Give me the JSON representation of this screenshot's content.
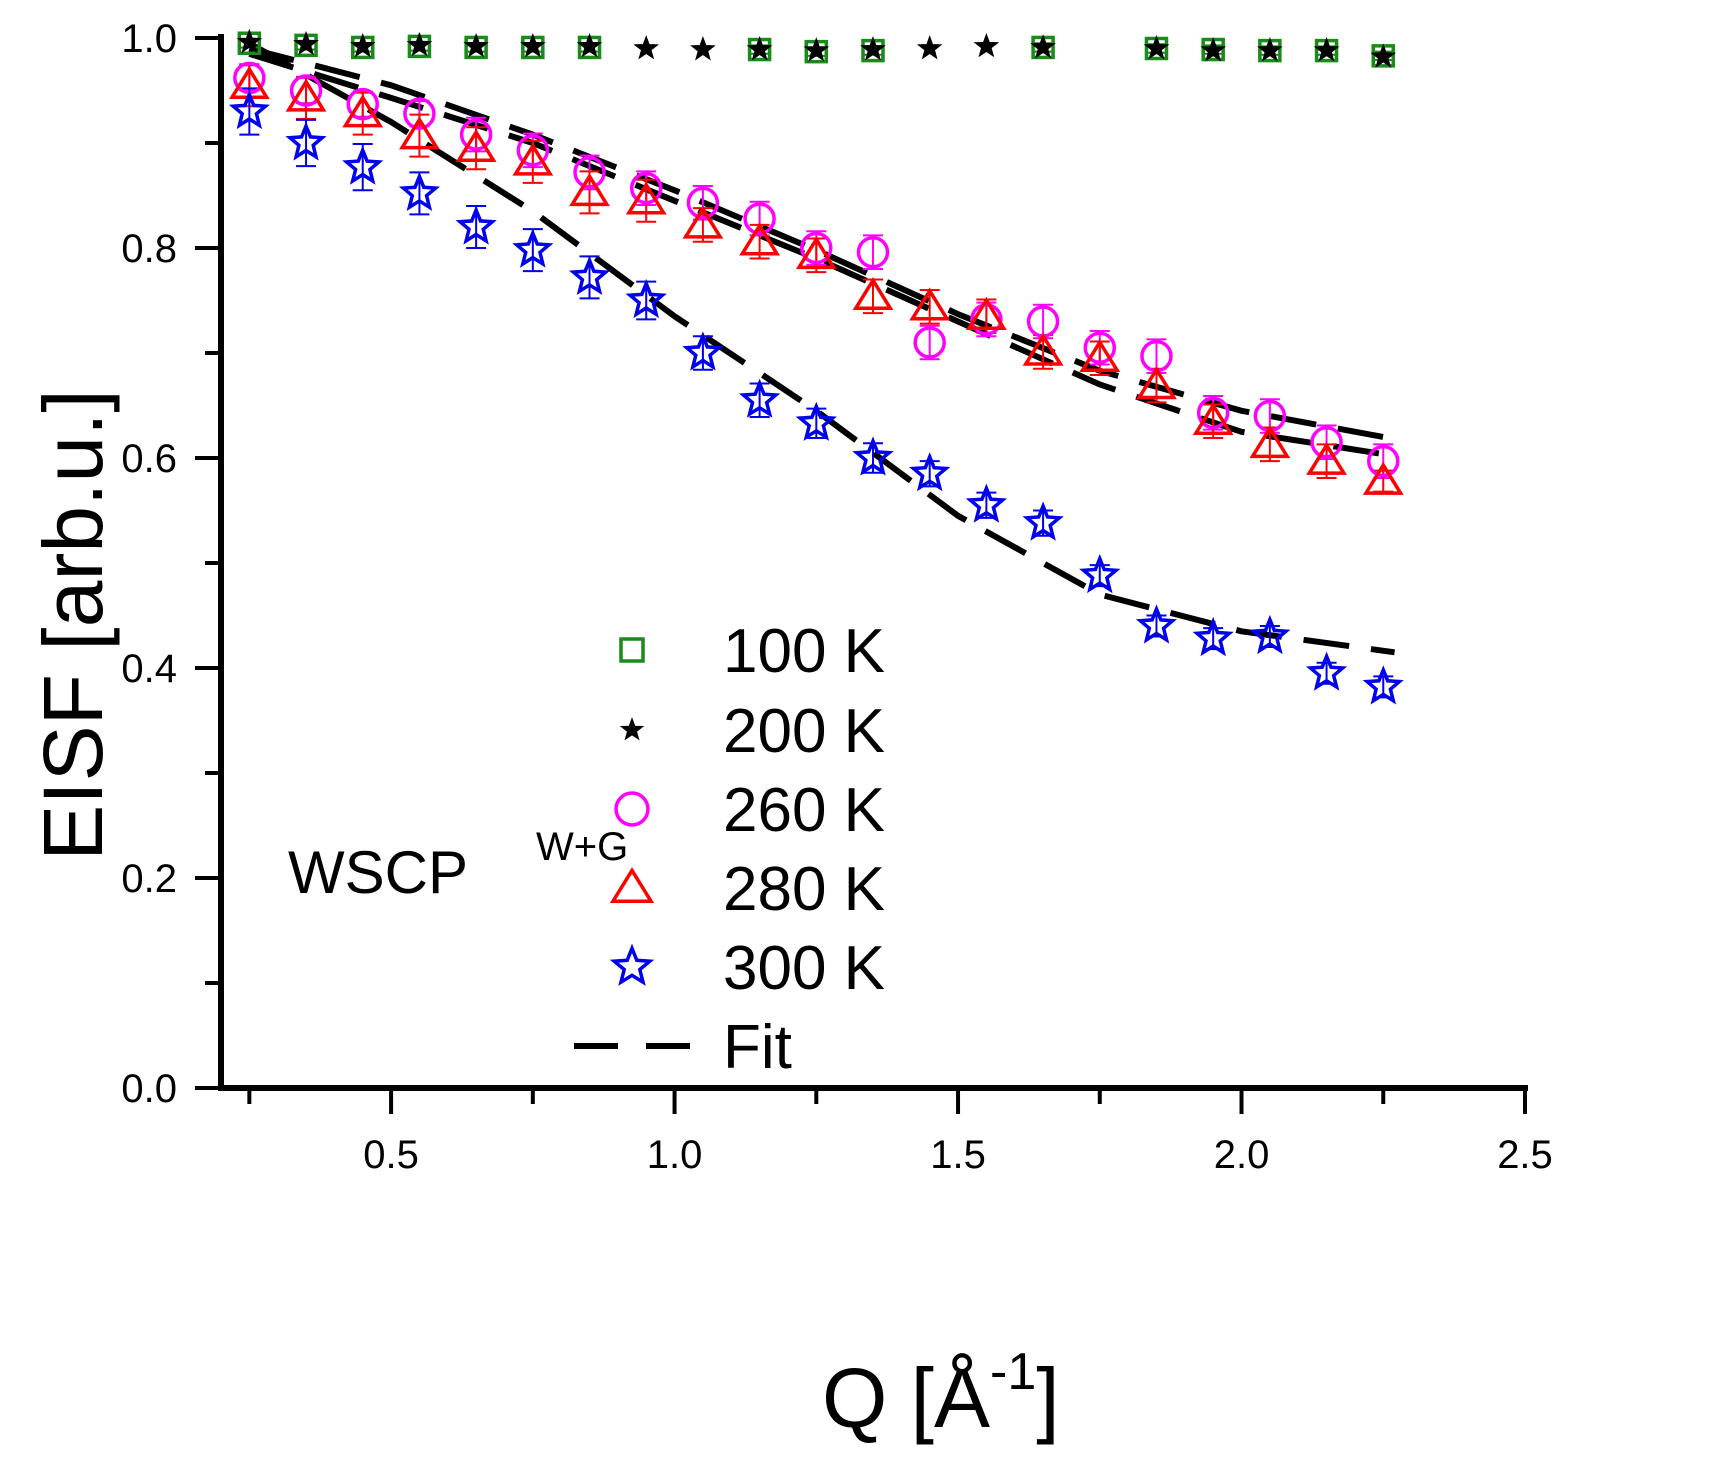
{
  "chart_data": {
    "type": "scatter",
    "title": "",
    "xlabel": "Q [Å",
    "xlabel_sup": "-1",
    "xlabel_close": "]",
    "ylabel": "EISF [arb.u.]",
    "xlim": [
      0.2,
      2.5
    ],
    "ylim": [
      0.0,
      1.0
    ],
    "x_ticks": [
      0.5,
      1.0,
      1.5,
      2.0,
      2.5
    ],
    "x_tick_labels": [
      "0.5",
      "1.0",
      "1.5",
      "2.0",
      "2.5"
    ],
    "x_minor_ticks": [
      0.25,
      0.75,
      1.25,
      1.75,
      2.25
    ],
    "y_ticks": [
      0.0,
      0.2,
      0.4,
      0.6,
      0.8,
      1.0
    ],
    "y_tick_labels": [
      "0.0",
      "0.2",
      "0.4",
      "0.6",
      "0.8",
      "1.0"
    ],
    "y_minor_ticks": [
      0.1,
      0.3,
      0.5,
      0.7,
      0.9
    ],
    "grid": false,
    "legend_position": "lower-middle",
    "annotation": {
      "text": "WSCP",
      "sup": "W+G"
    },
    "series": [
      {
        "name": "100 K",
        "marker": "square",
        "color": "#1a8a1a",
        "x": [
          0.25,
          0.35,
          0.45,
          0.55,
          0.65,
          0.75,
          0.85,
          1.15,
          1.25,
          1.35,
          1.65,
          1.85,
          1.95,
          2.05,
          2.15,
          2.25
        ],
        "y": [
          0.995,
          0.993,
          0.991,
          0.992,
          0.991,
          0.991,
          0.991,
          0.989,
          0.987,
          0.988,
          0.991,
          0.99,
          0.989,
          0.988,
          0.988,
          0.983
        ],
        "err": [
          0.004,
          0.004,
          0.004,
          0.004,
          0.004,
          0.004,
          0.004,
          0.004,
          0.004,
          0.004,
          0.004,
          0.004,
          0.004,
          0.004,
          0.004,
          0.004
        ]
      },
      {
        "name": "200 K",
        "marker": "star-filled",
        "color": "#000000",
        "x": [
          0.25,
          0.35,
          0.45,
          0.55,
          0.65,
          0.75,
          0.85,
          0.95,
          1.05,
          1.15,
          1.25,
          1.35,
          1.45,
          1.55,
          1.65,
          1.85,
          1.95,
          2.05,
          2.15,
          2.25
        ],
        "y": [
          0.996,
          0.994,
          0.992,
          0.993,
          0.992,
          0.992,
          0.992,
          0.99,
          0.989,
          0.989,
          0.988,
          0.989,
          0.99,
          0.992,
          0.991,
          0.99,
          0.988,
          0.988,
          0.988,
          0.982
        ]
      },
      {
        "name": "260 K",
        "marker": "circle",
        "color": "#ff00ff",
        "x": [
          0.25,
          0.35,
          0.45,
          0.55,
          0.65,
          0.75,
          0.85,
          0.95,
          1.05,
          1.15,
          1.25,
          1.35,
          1.45,
          1.55,
          1.65,
          1.75,
          1.85,
          1.95,
          2.05,
          2.15,
          2.25
        ],
        "y": [
          0.962,
          0.95,
          0.937,
          0.928,
          0.908,
          0.893,
          0.872,
          0.857,
          0.843,
          0.828,
          0.8,
          0.796,
          0.71,
          0.732,
          0.73,
          0.705,
          0.697,
          0.643,
          0.64,
          0.615,
          0.597
        ],
        "err": [
          0.012,
          0.012,
          0.012,
          0.012,
          0.016,
          0.016,
          0.016,
          0.016,
          0.016,
          0.016,
          0.016,
          0.016,
          0.016,
          0.016,
          0.016,
          0.016,
          0.016,
          0.016,
          0.016,
          0.016,
          0.016
        ]
      },
      {
        "name": "280 K",
        "marker": "triangle",
        "color": "#ff0000",
        "x": [
          0.25,
          0.35,
          0.45,
          0.55,
          0.65,
          0.75,
          0.85,
          0.95,
          1.05,
          1.15,
          1.25,
          1.35,
          1.45,
          1.55,
          1.65,
          1.75,
          1.85,
          1.95,
          2.05,
          2.15,
          2.25
        ],
        "y": [
          0.955,
          0.943,
          0.928,
          0.907,
          0.895,
          0.882,
          0.853,
          0.845,
          0.822,
          0.806,
          0.793,
          0.754,
          0.744,
          0.735,
          0.701,
          0.695,
          0.669,
          0.635,
          0.613,
          0.597,
          0.578
        ],
        "err": [
          0.02,
          0.02,
          0.02,
          0.02,
          0.02,
          0.02,
          0.02,
          0.02,
          0.016,
          0.016,
          0.016,
          0.016,
          0.016,
          0.016,
          0.016,
          0.016,
          0.016,
          0.016,
          0.016,
          0.016,
          0.01
        ]
      },
      {
        "name": "300 K",
        "marker": "star-open",
        "color": "#0000ee",
        "x": [
          0.25,
          0.35,
          0.45,
          0.55,
          0.65,
          0.75,
          0.85,
          0.95,
          1.05,
          1.15,
          1.25,
          1.35,
          1.45,
          1.55,
          1.65,
          1.75,
          1.85,
          1.95,
          2.05,
          2.15,
          2.25
        ],
        "y": [
          0.93,
          0.9,
          0.877,
          0.852,
          0.82,
          0.798,
          0.772,
          0.75,
          0.7,
          0.655,
          0.633,
          0.6,
          0.585,
          0.555,
          0.538,
          0.488,
          0.44,
          0.428,
          0.43,
          0.395,
          0.382
        ],
        "err": [
          0.022,
          0.022,
          0.022,
          0.02,
          0.02,
          0.02,
          0.02,
          0.018,
          0.016,
          0.016,
          0.014,
          0.014,
          0.012,
          0.012,
          0.012,
          0.01,
          0.01,
          0.01,
          0.01,
          0.01,
          0.01
        ]
      }
    ],
    "fits": [
      {
        "name": "Fit",
        "for": "260 K",
        "x": [
          0.25,
          0.5,
          0.75,
          1.0,
          1.25,
          1.5,
          1.75,
          2.0,
          2.27
        ],
        "y": [
          0.99,
          0.955,
          0.908,
          0.855,
          0.798,
          0.737,
          0.683,
          0.645,
          0.618
        ]
      },
      {
        "name": "Fit",
        "for": "280 K",
        "x": [
          0.25,
          0.5,
          0.75,
          1.0,
          1.25,
          1.5,
          1.75,
          2.0,
          2.27
        ],
        "y": [
          0.985,
          0.943,
          0.9,
          0.845,
          0.79,
          0.73,
          0.67,
          0.625,
          0.602
        ]
      },
      {
        "name": "Fit",
        "for": "300 K",
        "x": [
          0.25,
          0.5,
          0.75,
          1.0,
          1.25,
          1.5,
          1.75,
          2.0,
          2.27
        ],
        "y": [
          0.995,
          0.92,
          0.835,
          0.735,
          0.645,
          0.545,
          0.47,
          0.435,
          0.415
        ]
      }
    ],
    "legend": [
      {
        "label": "100 K",
        "marker": "square",
        "color": "#1a8a1a"
      },
      {
        "label": "200 K",
        "marker": "star-filled",
        "color": "#000000"
      },
      {
        "label": "260 K",
        "marker": "circle",
        "color": "#ff00ff"
      },
      {
        "label": "280 K",
        "marker": "triangle",
        "color": "#ff0000"
      },
      {
        "label": "300 K",
        "marker": "star-open",
        "color": "#0000ee"
      },
      {
        "label": "Fit",
        "marker": "dash",
        "color": "#000000"
      }
    ]
  }
}
